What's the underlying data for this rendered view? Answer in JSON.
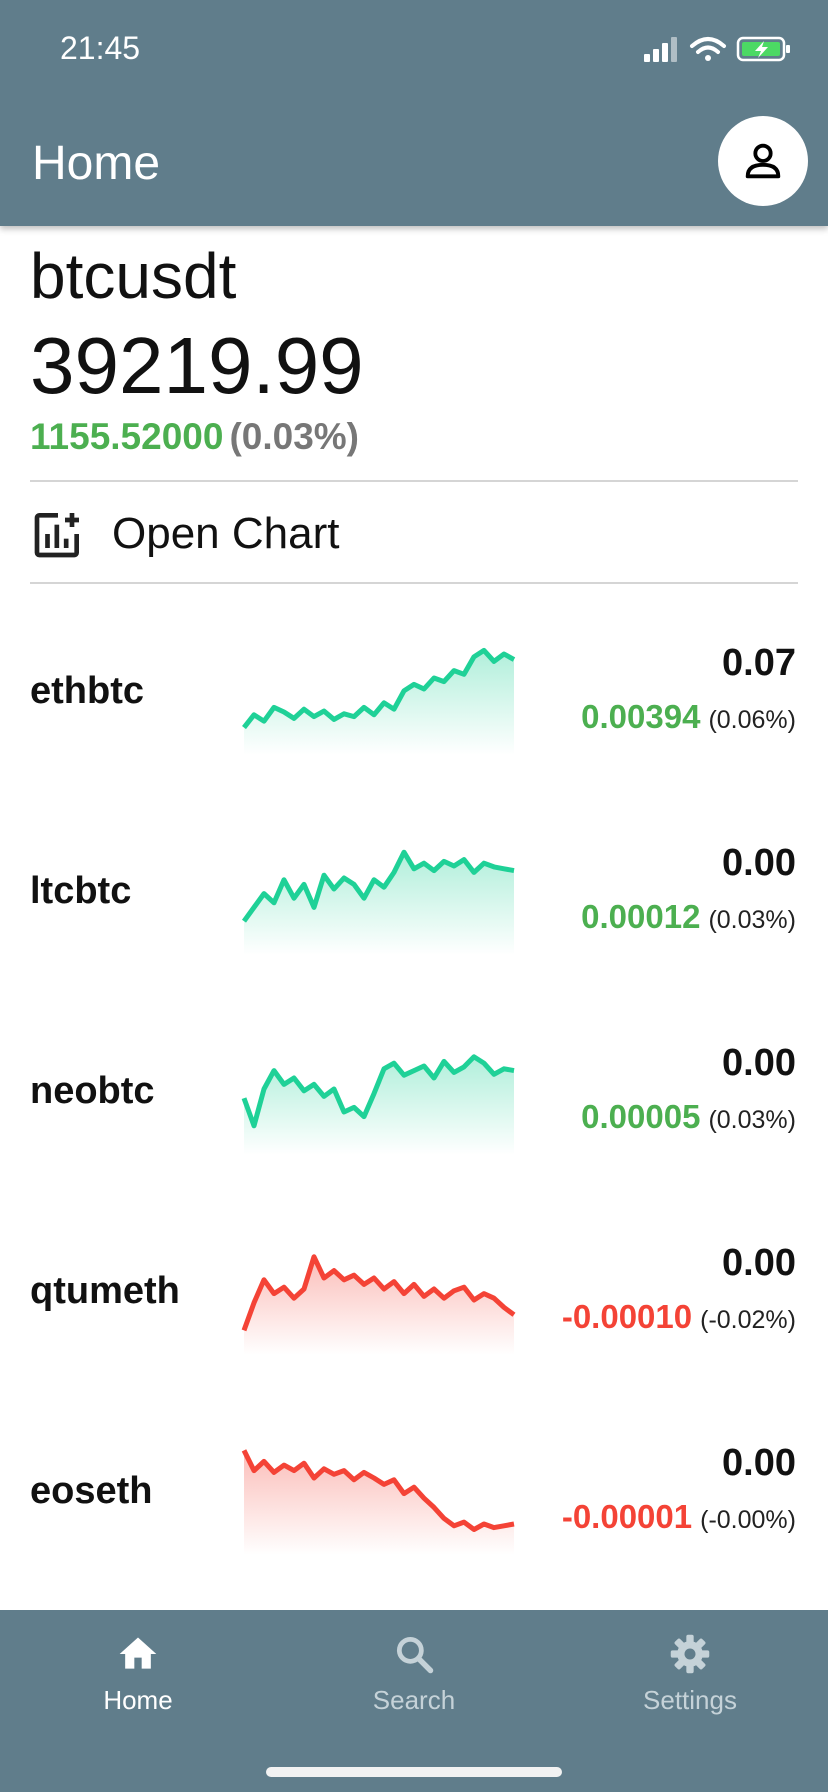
{
  "status_bar": {
    "time": "21:45"
  },
  "app_bar": {
    "title": "Home",
    "profile_icon": "person-icon"
  },
  "ticker": {
    "symbol": "btcusdt",
    "price": "39219.99",
    "change": "1155.52000",
    "change_pct": "(0.03%)"
  },
  "open_chart": {
    "label": "Open Chart",
    "icon": "add-chart-icon"
  },
  "colors": {
    "up": "#4caf50",
    "down": "#f44336",
    "up_line": "#1fd197",
    "down_line": "#f44336",
    "bar": "#607d8b"
  },
  "pairs": [
    {
      "name": "ethbtc",
      "price": "0.07",
      "change": "0.00394",
      "change_pct": "(0.06%)",
      "trend": "up",
      "spark": [
        0.08,
        0.22,
        0.15,
        0.3,
        0.25,
        0.18,
        0.28,
        0.2,
        0.26,
        0.17,
        0.23,
        0.2,
        0.3,
        0.22,
        0.35,
        0.28,
        0.48,
        0.55,
        0.5,
        0.62,
        0.58,
        0.7,
        0.66,
        0.85,
        0.92,
        0.8,
        0.88,
        0.82
      ]
    },
    {
      "name": "ltcbtc",
      "price": "0.00",
      "change": "0.00012",
      "change_pct": "(0.03%)",
      "trend": "up",
      "spark": [
        0.15,
        0.3,
        0.45,
        0.35,
        0.6,
        0.4,
        0.55,
        0.3,
        0.65,
        0.5,
        0.62,
        0.55,
        0.4,
        0.6,
        0.52,
        0.68,
        0.9,
        0.72,
        0.78,
        0.7,
        0.8,
        0.75,
        0.82,
        0.68,
        0.78,
        0.74,
        0.72,
        0.7
      ]
    },
    {
      "name": "neobtc",
      "price": "0.00",
      "change": "0.00005",
      "change_pct": "(0.03%)",
      "trend": "up",
      "spark": [
        0.4,
        0.1,
        0.5,
        0.7,
        0.55,
        0.62,
        0.48,
        0.55,
        0.42,
        0.5,
        0.25,
        0.3,
        0.2,
        0.45,
        0.72,
        0.78,
        0.65,
        0.7,
        0.75,
        0.62,
        0.8,
        0.68,
        0.74,
        0.85,
        0.78,
        0.66,
        0.72,
        0.7
      ]
    },
    {
      "name": "qtumeth",
      "price": "0.00",
      "change": "-0.00010",
      "change_pct": "(-0.02%)",
      "trend": "down",
      "spark": [
        0.05,
        0.35,
        0.6,
        0.45,
        0.52,
        0.4,
        0.5,
        0.85,
        0.62,
        0.7,
        0.6,
        0.65,
        0.55,
        0.62,
        0.5,
        0.58,
        0.45,
        0.55,
        0.42,
        0.5,
        0.4,
        0.48,
        0.52,
        0.38,
        0.45,
        0.4,
        0.3,
        0.22
      ]
    },
    {
      "name": "eoseth",
      "price": "0.00",
      "change": "-0.00001",
      "change_pct": "(-0.00%)",
      "trend": "down",
      "spark": [
        0.92,
        0.7,
        0.8,
        0.68,
        0.76,
        0.7,
        0.78,
        0.62,
        0.72,
        0.66,
        0.7,
        0.6,
        0.68,
        0.62,
        0.55,
        0.6,
        0.45,
        0.52,
        0.4,
        0.3,
        0.18,
        0.1,
        0.14,
        0.06,
        0.12,
        0.08,
        0.1,
        0.12
      ]
    }
  ],
  "nav": [
    {
      "label": "Home",
      "icon": "home-icon",
      "active": true
    },
    {
      "label": "Search",
      "icon": "search-icon",
      "active": false
    },
    {
      "label": "Settings",
      "icon": "gear-icon",
      "active": false
    }
  ]
}
